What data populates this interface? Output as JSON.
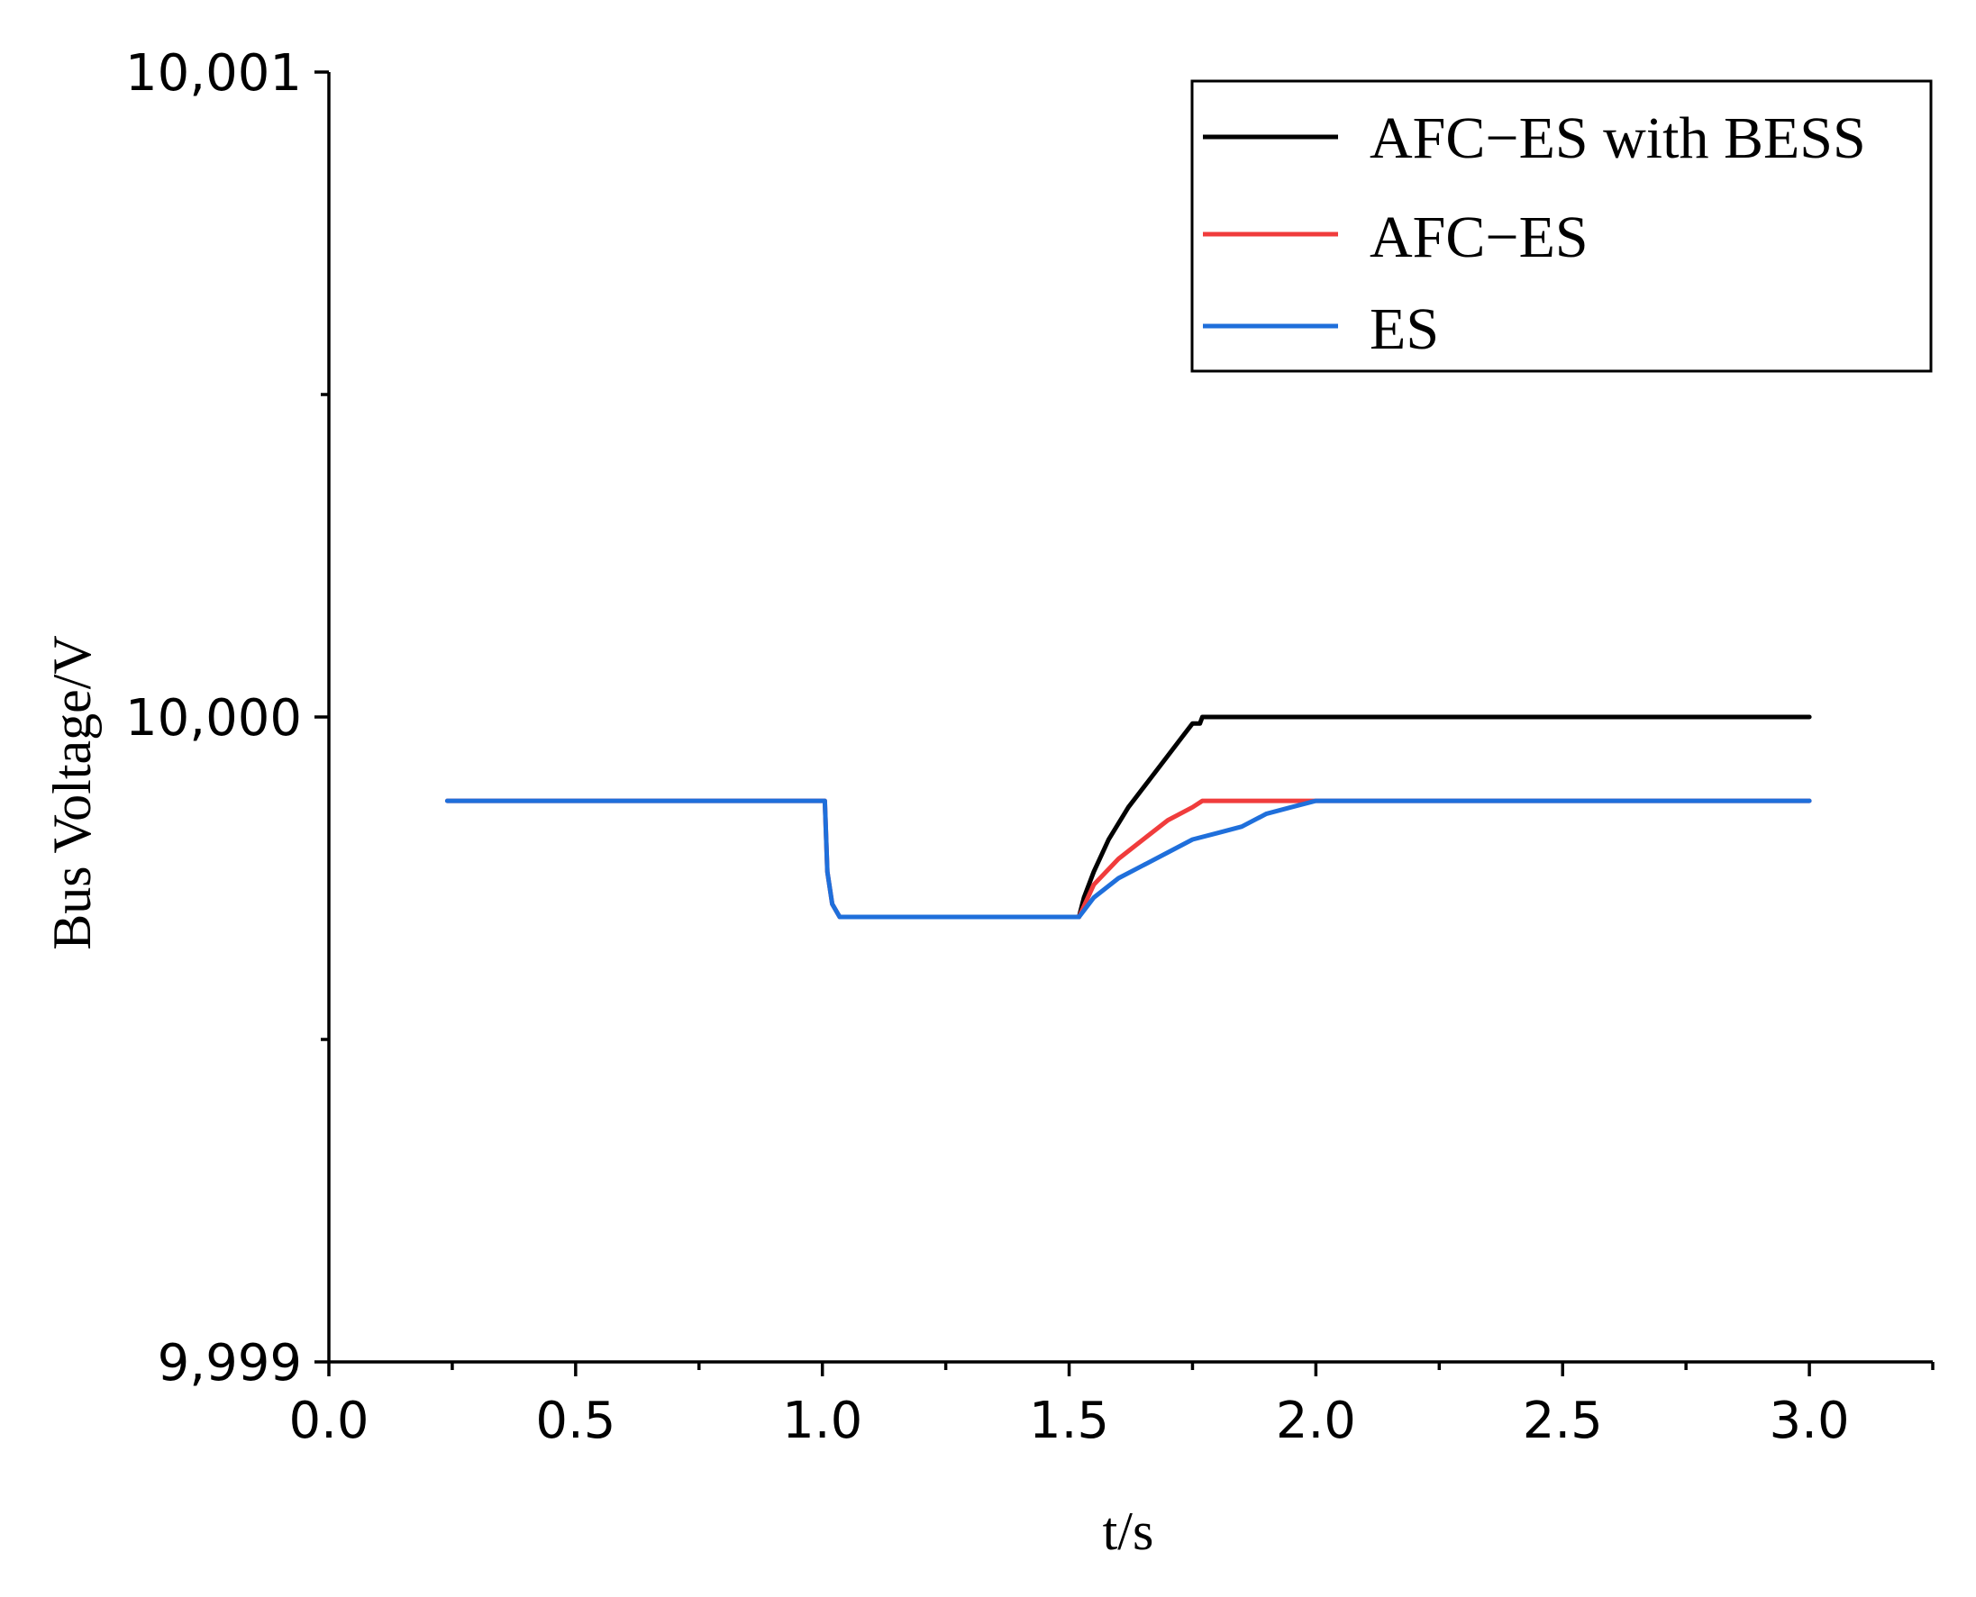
{
  "chart_data": {
    "type": "line",
    "xlabel": "t/s",
    "ylabel": "Bus Voltage/V",
    "xlim": [
      0.0,
      3.25
    ],
    "ylim": [
      9.999,
      10.001
    ],
    "x_ticks": [
      0.0,
      0.5,
      1.0,
      1.5,
      2.0,
      2.5,
      3.0
    ],
    "x_tick_labels": [
      "0.0",
      "0.5",
      "1.0",
      "1.5",
      "2.0",
      "2.5",
      "3.0"
    ],
    "x_minor_ticks": [
      0.25,
      0.75,
      1.25,
      1.75,
      2.25,
      2.75,
      3.25
    ],
    "y_ticks": [
      9.999,
      10.0,
      10.001
    ],
    "y_tick_labels": [
      "9,999",
      "10,000",
      "10,001"
    ],
    "y_minor_ticks": [
      9.9995,
      10.0005
    ],
    "grid": false,
    "legend_position": "top-right",
    "series": [
      {
        "name": "AFC−ES with BESS",
        "color": "#000000",
        "x": [
          1.52,
          1.53,
          1.55,
          1.58,
          1.62,
          1.66,
          1.7,
          1.73,
          1.75,
          1.765,
          1.77,
          2.0,
          2.5,
          3.0
        ],
        "y": [
          9.99969,
          9.99972,
          9.99976,
          9.99981,
          9.99986,
          9.9999,
          9.99994,
          9.99997,
          9.99999,
          9.99999,
          10.0,
          10.0,
          10.0,
          10.0
        ]
      },
      {
        "name": "AFC−ES",
        "color": "#f03c3c",
        "x": [
          0.24,
          1.0,
          1.005,
          1.01,
          1.02,
          1.035,
          1.5,
          1.52,
          1.55,
          1.6,
          1.65,
          1.7,
          1.75,
          1.77,
          2.0,
          2.5,
          3.0
        ],
        "y": [
          9.99987,
          9.99987,
          9.99987,
          9.99976,
          9.99971,
          9.99969,
          9.99969,
          9.99969,
          9.99974,
          9.99978,
          9.99981,
          9.99984,
          9.99986,
          9.99987,
          9.99987,
          9.99987,
          9.99987
        ]
      },
      {
        "name": "ES",
        "color": "#1f6fdb",
        "x": [
          0.24,
          1.0,
          1.005,
          1.01,
          1.02,
          1.035,
          1.5,
          1.52,
          1.55,
          1.6,
          1.65,
          1.7,
          1.75,
          1.8,
          1.85,
          1.9,
          1.95,
          2.0,
          2.05,
          2.5,
          3.0
        ],
        "y": [
          9.99987,
          9.99987,
          9.99987,
          9.99976,
          9.99971,
          9.99969,
          9.99969,
          9.99969,
          9.99972,
          9.99975,
          9.99977,
          9.99979,
          9.99981,
          9.99982,
          9.99983,
          9.99985,
          9.99986,
          9.99987,
          9.99987,
          9.99987,
          9.99987
        ]
      }
    ]
  }
}
